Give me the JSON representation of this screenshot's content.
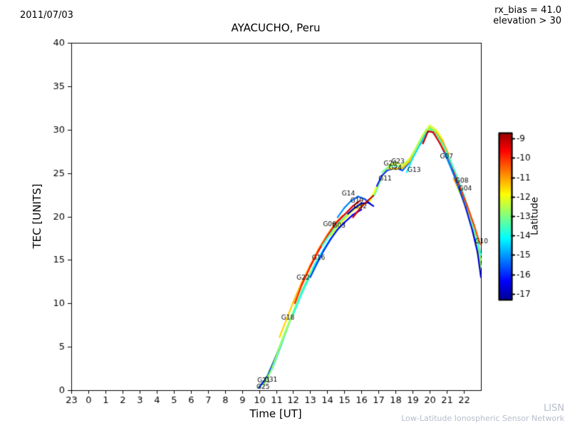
{
  "header": {
    "date": "2011/07/03",
    "rx_bias": "rx_bias = 41.0",
    "elevation": "elevation > 30"
  },
  "watermark": {
    "line1": "LISN",
    "line2": "Low-Latitude Ionospheric Sensor Network"
  },
  "chart_data": {
    "type": "line",
    "title": "AYACUCHO, Peru",
    "xlabel": "Time [UT]",
    "ylabel": "TEC [UNITS]",
    "ylim": [
      0,
      40
    ],
    "xtick_labels": [
      "23",
      "0",
      "1",
      "2",
      "3",
      "4",
      "5",
      "6",
      "7",
      "8",
      "9",
      "10",
      "11",
      "12",
      "13",
      "14",
      "15",
      "16",
      "17",
      "18",
      "19",
      "20",
      "21",
      "22"
    ],
    "ytick_values": [
      0,
      5,
      10,
      15,
      20,
      25,
      30,
      35,
      40
    ],
    "grid": false,
    "colorbar": {
      "label": "Latitude",
      "ticks": [
        -9,
        -10,
        -11,
        -12,
        -13,
        -14,
        -15,
        -16,
        -17
      ],
      "colormap": "jet",
      "cmap_min": -17.5,
      "cmap_max": -8.5,
      "bar_max": -8.7,
      "bar_min": -17.3
    },
    "series": [
      {
        "name": "G21",
        "lat": [
          -13.0,
          -12.4
        ],
        "label_at": [
          9.9,
          1.1
        ],
        "points": [
          [
            9.95,
            0.3
          ],
          [
            10.4,
            1.3
          ],
          [
            11.0,
            4.0
          ],
          [
            11.5,
            6.6
          ],
          [
            12.0,
            9.0
          ],
          [
            12.5,
            11.4
          ],
          [
            13.0,
            13.5
          ],
          [
            13.4,
            15.0
          ]
        ]
      },
      {
        "name": "G25",
        "lat": [
          -16.2,
          -15.8
        ],
        "label_at": [
          9.85,
          0.35
        ],
        "points": [
          [
            10.0,
            0.3
          ],
          [
            10.5,
            1.6
          ],
          [
            11.0,
            3.9
          ],
          [
            11.4,
            5.8
          ]
        ]
      },
      {
        "name": "G31",
        "lat": [
          -14.6,
          -14.0
        ],
        "label_at": [
          10.3,
          1.15
        ],
        "points": [
          [
            10.3,
            0.7
          ],
          [
            10.8,
            2.6
          ],
          [
            11.3,
            5.2
          ],
          [
            11.8,
            7.9
          ],
          [
            12.3,
            10.4
          ],
          [
            12.8,
            12.6
          ],
          [
            13.3,
            14.6
          ],
          [
            13.8,
            16.3
          ],
          [
            14.2,
            17.5
          ]
        ]
      },
      {
        "name": "",
        "lat": [
          -12.8,
          -12.6
        ],
        "label_at": null,
        "points": [
          [
            10.25,
            0.5
          ],
          [
            10.7,
            2.2
          ],
          [
            11.2,
            4.9
          ],
          [
            11.7,
            7.4
          ],
          [
            12.2,
            9.9
          ],
          [
            12.7,
            12.0
          ],
          [
            13.1,
            13.9
          ]
        ]
      },
      {
        "name": "",
        "lat": [
          -13.9,
          -13.6
        ],
        "label_at": null,
        "points": [
          [
            12.0,
            8.7
          ],
          [
            12.5,
            11.1
          ],
          [
            13.0,
            13.2
          ],
          [
            13.5,
            15.1
          ],
          [
            14.0,
            16.8
          ],
          [
            14.5,
            18.3
          ],
          [
            15.0,
            19.3
          ]
        ]
      },
      {
        "name": "G18",
        "lat": [
          -11.6,
          -10.6
        ],
        "label_at": [
          11.3,
          8.3
        ],
        "points": [
          [
            11.2,
            6.1
          ],
          [
            11.6,
            8.1
          ],
          [
            12.0,
            10.1
          ],
          [
            12.5,
            12.4
          ],
          [
            13.0,
            14.4
          ],
          [
            13.5,
            16.3
          ],
          [
            14.0,
            17.9
          ],
          [
            14.5,
            19.3
          ],
          [
            14.9,
            20.1
          ]
        ]
      },
      {
        "name": "G22",
        "lat": [
          -10.0,
          -9.2
        ],
        "label_at": [
          12.2,
          12.9
        ],
        "points": [
          [
            12.1,
            10.0
          ],
          [
            12.5,
            12.1
          ],
          [
            13.0,
            14.2
          ],
          [
            13.5,
            16.1
          ],
          [
            14.0,
            17.7
          ],
          [
            14.5,
            19.2
          ],
          [
            15.0,
            20.2
          ],
          [
            15.5,
            21.2
          ],
          [
            15.9,
            21.8
          ]
        ]
      },
      {
        "name": "G16",
        "lat": [
          -15.7,
          -16.6
        ],
        "label_at": [
          13.1,
          15.2
        ],
        "points": [
          [
            13.0,
            13.0
          ],
          [
            13.4,
            14.6
          ],
          [
            13.8,
            16.1
          ],
          [
            14.2,
            17.4
          ],
          [
            14.6,
            18.5
          ],
          [
            15.0,
            19.3
          ],
          [
            15.5,
            20.2
          ],
          [
            16.0,
            20.8
          ]
        ]
      },
      {
        "name": "G06",
        "lat": [
          -13.6,
          -13.2
        ],
        "label_at": [
          13.75,
          19.1
        ],
        "points": [
          [
            13.7,
            16.6
          ],
          [
            14.0,
            17.5
          ],
          [
            14.5,
            18.9
          ],
          [
            15.0,
            19.9
          ],
          [
            15.5,
            20.8
          ],
          [
            16.0,
            21.4
          ],
          [
            16.4,
            21.6
          ],
          [
            16.8,
            22.6
          ],
          [
            17.2,
            24.6
          ]
        ]
      },
      {
        "name": "G03",
        "lat": [
          -12.2,
          -11.8
        ],
        "label_at": [
          14.3,
          18.9
        ],
        "points": [
          [
            14.2,
            17.8
          ],
          [
            14.6,
            18.9
          ],
          [
            15.0,
            19.7
          ],
          [
            15.5,
            20.7
          ],
          [
            16.0,
            21.3
          ],
          [
            16.5,
            21.8
          ],
          [
            17.0,
            23.9
          ],
          [
            17.5,
            25.6
          ],
          [
            17.9,
            25.9
          ]
        ]
      },
      {
        "name": "G14",
        "lat": [
          -15.0,
          -15.8
        ],
        "label_at": [
          14.85,
          22.6
        ],
        "points": [
          [
            14.6,
            19.9
          ],
          [
            15.0,
            21.0
          ],
          [
            15.4,
            21.8
          ],
          [
            15.8,
            22.3
          ],
          [
            16.2,
            22.0
          ],
          [
            16.5,
            21.5
          ]
        ]
      },
      {
        "name": "G19",
        "lat": [
          -17.0,
          -16.8
        ],
        "label_at": [
          15.35,
          21.8
        ],
        "points": [
          [
            15.2,
            20.3
          ],
          [
            15.6,
            21.0
          ],
          [
            16.0,
            21.5
          ],
          [
            16.4,
            21.6
          ],
          [
            16.7,
            21.2
          ]
        ]
      },
      {
        "name": "G32",
        "lat": [
          -9.4,
          -9.1
        ],
        "label_at": [
          15.55,
          21.1
        ],
        "points": [
          [
            15.5,
            19.9
          ],
          [
            15.9,
            20.9
          ],
          [
            16.3,
            21.7
          ],
          [
            16.7,
            22.4
          ]
        ]
      },
      {
        "name": "G11",
        "lat": [
          -16.2,
          -15.2
        ],
        "label_at": [
          17.0,
          24.3
        ],
        "points": [
          [
            16.9,
            23.5
          ],
          [
            17.2,
            24.7
          ],
          [
            17.5,
            25.3
          ],
          [
            18.0,
            25.6
          ],
          [
            18.4,
            25.3
          ],
          [
            18.8,
            26.2
          ],
          [
            19.2,
            27.6
          ],
          [
            19.6,
            28.8
          ]
        ]
      },
      {
        "name": "G20",
        "lat": [
          -13.2,
          -12.9
        ],
        "label_at": [
          17.3,
          26.1
        ],
        "points": [
          [
            17.2,
            25.1
          ],
          [
            17.6,
            25.7
          ],
          [
            18.0,
            25.9
          ],
          [
            18.4,
            25.6
          ],
          [
            18.8,
            26.4
          ],
          [
            19.2,
            27.8
          ],
          [
            19.6,
            29.2
          ],
          [
            20.0,
            30.3
          ],
          [
            20.4,
            29.7
          ]
        ]
      },
      {
        "name": "G23",
        "lat": [
          -12.4,
          -12.1
        ],
        "label_at": [
          17.75,
          26.35
        ],
        "points": [
          [
            17.6,
            25.9
          ],
          [
            18.0,
            26.2
          ],
          [
            18.4,
            25.9
          ],
          [
            18.8,
            26.6
          ],
          [
            19.2,
            27.9
          ],
          [
            19.6,
            29.4
          ],
          [
            20.0,
            30.5
          ],
          [
            20.4,
            29.9
          ],
          [
            20.8,
            28.7
          ]
        ]
      },
      {
        "name": "G24",
        "lat": [
          -11.4,
          -11.1
        ],
        "label_at": [
          17.6,
          25.6
        ],
        "points": [
          [
            17.6,
            25.5
          ],
          [
            18.0,
            25.5
          ],
          [
            18.4,
            25.6
          ],
          [
            18.8,
            26.3
          ],
          [
            19.2,
            27.5
          ],
          [
            19.6,
            29.0
          ],
          [
            20.0,
            30.1
          ],
          [
            20.4,
            29.6
          ],
          [
            20.8,
            28.5
          ],
          [
            21.1,
            27.2
          ]
        ]
      },
      {
        "name": "G13",
        "lat": [
          -14.2,
          -15.0
        ],
        "label_at": [
          18.7,
          25.3
        ],
        "points": [
          [
            18.65,
            25.1
          ],
          [
            19.0,
            26.7
          ],
          [
            19.4,
            28.2
          ],
          [
            19.8,
            29.6
          ],
          [
            20.1,
            29.9
          ],
          [
            20.5,
            28.9
          ],
          [
            21.0,
            26.7
          ],
          [
            21.5,
            24.4
          ]
        ]
      },
      {
        "name": "",
        "lat": [
          -12.6,
          -12.9
        ],
        "label_at": null,
        "points": [
          [
            19.0,
            27.1
          ],
          [
            19.4,
            28.6
          ],
          [
            19.8,
            30.0
          ],
          [
            20.2,
            29.9
          ],
          [
            20.6,
            28.7
          ],
          [
            21.0,
            27.2
          ],
          [
            21.5,
            25.0
          ],
          [
            22.0,
            22.3
          ],
          [
            22.5,
            18.8
          ],
          [
            23.0,
            15.0
          ]
        ]
      },
      {
        "name": "",
        "lat": [
          -13.4,
          -13.8
        ],
        "label_at": null,
        "points": [
          [
            20.0,
            30.1
          ],
          [
            20.4,
            29.4
          ],
          [
            20.8,
            28.2
          ],
          [
            21.2,
            26.5
          ],
          [
            21.6,
            24.6
          ],
          [
            22.0,
            22.5
          ],
          [
            22.4,
            20.0
          ],
          [
            22.8,
            17.0
          ],
          [
            23.0,
            15.6
          ]
        ]
      },
      {
        "name": "G07",
        "lat": [
          -9.0,
          -10.4
        ],
        "label_at": [
          20.6,
          26.9
        ],
        "points": [
          [
            19.6,
            28.4
          ],
          [
            19.9,
            29.8
          ],
          [
            20.2,
            29.7
          ],
          [
            20.6,
            28.4
          ],
          [
            21.0,
            26.9
          ],
          [
            21.4,
            25.1
          ],
          [
            21.8,
            23.2
          ],
          [
            22.2,
            21.2
          ],
          [
            22.6,
            19.0
          ],
          [
            22.95,
            16.8
          ]
        ]
      },
      {
        "name": "G08",
        "lat": [
          -10.9,
          -11.6
        ],
        "label_at": [
          21.5,
          24.1
        ],
        "points": [
          [
            21.4,
            24.4
          ],
          [
            21.8,
            22.7
          ],
          [
            22.2,
            20.4
          ],
          [
            22.6,
            17.6
          ],
          [
            22.95,
            14.6
          ]
        ]
      },
      {
        "name": "G04",
        "lat": [
          -12.2,
          -12.9
        ],
        "label_at": [
          21.7,
          23.2
        ],
        "points": [
          [
            21.6,
            23.4
          ],
          [
            22.0,
            21.7
          ],
          [
            22.4,
            19.4
          ],
          [
            22.8,
            16.4
          ],
          [
            23.0,
            14.2
          ]
        ]
      },
      {
        "name": "G10",
        "lat": [
          -15.0,
          -17.0
        ],
        "label_at": [
          22.65,
          17.1
        ],
        "points": [
          [
            20.9,
            27.3
          ],
          [
            21.3,
            25.4
          ],
          [
            21.7,
            23.3
          ],
          [
            22.1,
            21.1
          ],
          [
            22.5,
            18.4
          ],
          [
            22.8,
            15.9
          ],
          [
            23.0,
            13.0
          ]
        ]
      }
    ]
  }
}
